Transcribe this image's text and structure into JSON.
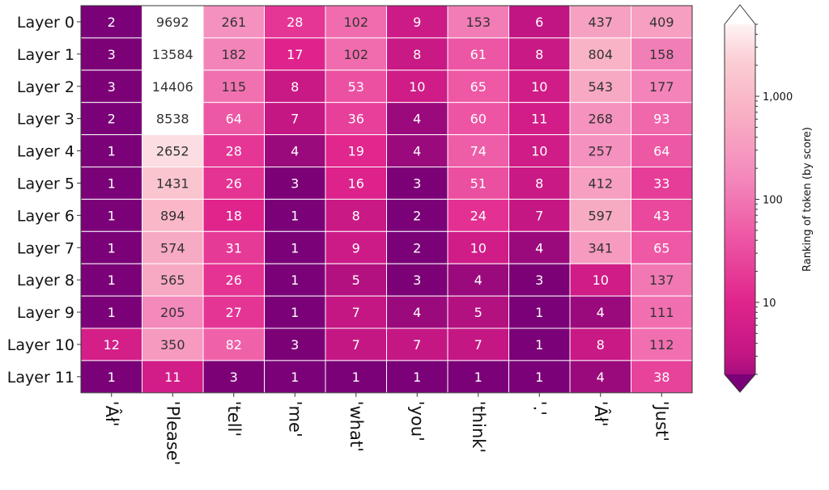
{
  "chart_data": {
    "type": "heatmap",
    "title": "",
    "xlabel": "",
    "ylabel": "",
    "rows": [
      "Layer 0",
      "Layer 1",
      "Layer 2",
      "Layer 3",
      "Layer 4",
      "Layer 5",
      "Layer 6",
      "Layer 7",
      "Layer 8",
      "Layer 9",
      "Layer 10",
      "Layer 11"
    ],
    "columns": [
      "'Âł'",
      "'Please'",
      "'tell'",
      "'me'",
      "'what'",
      "'you'",
      "'think'",
      "'.'",
      "'Âł'",
      "'Just'"
    ],
    "values": [
      [
        2,
        9692,
        261,
        28,
        102,
        9,
        153,
        6,
        437,
        409
      ],
      [
        3,
        13584,
        182,
        17,
        102,
        8,
        61,
        8,
        804,
        158
      ],
      [
        3,
        14406,
        115,
        8,
        53,
        10,
        65,
        10,
        543,
        177
      ],
      [
        2,
        8538,
        64,
        7,
        36,
        4,
        60,
        11,
        268,
        93
      ],
      [
        1,
        2652,
        28,
        4,
        19,
        4,
        74,
        10,
        257,
        64
      ],
      [
        1,
        1431,
        26,
        3,
        16,
        3,
        51,
        8,
        412,
        33
      ],
      [
        1,
        894,
        18,
        1,
        8,
        2,
        24,
        7,
        597,
        43
      ],
      [
        1,
        574,
        31,
        1,
        9,
        2,
        10,
        4,
        341,
        65
      ],
      [
        1,
        565,
        26,
        1,
        5,
        3,
        4,
        3,
        10,
        137
      ],
      [
        1,
        205,
        27,
        1,
        7,
        4,
        5,
        1,
        4,
        111
      ],
      [
        12,
        350,
        82,
        3,
        7,
        7,
        7,
        1,
        8,
        112
      ],
      [
        1,
        11,
        3,
        1,
        1,
        1,
        1,
        1,
        4,
        38
      ]
    ],
    "colorbar": {
      "label": "Ranking of token (by score)",
      "scale": "log",
      "range": [
        2,
        5000
      ],
      "ticks": [
        10,
        100,
        1000
      ],
      "tick_labels": [
        "10",
        "100",
        "1,000"
      ],
      "extend": "both",
      "colormap": "RdPu"
    },
    "cell_text_color_rule": "white on dark cells, dark on light cells",
    "colors": {
      "cell_border": "#ffffff",
      "text_dark": "#333333",
      "text_light": "#ffffff"
    }
  }
}
